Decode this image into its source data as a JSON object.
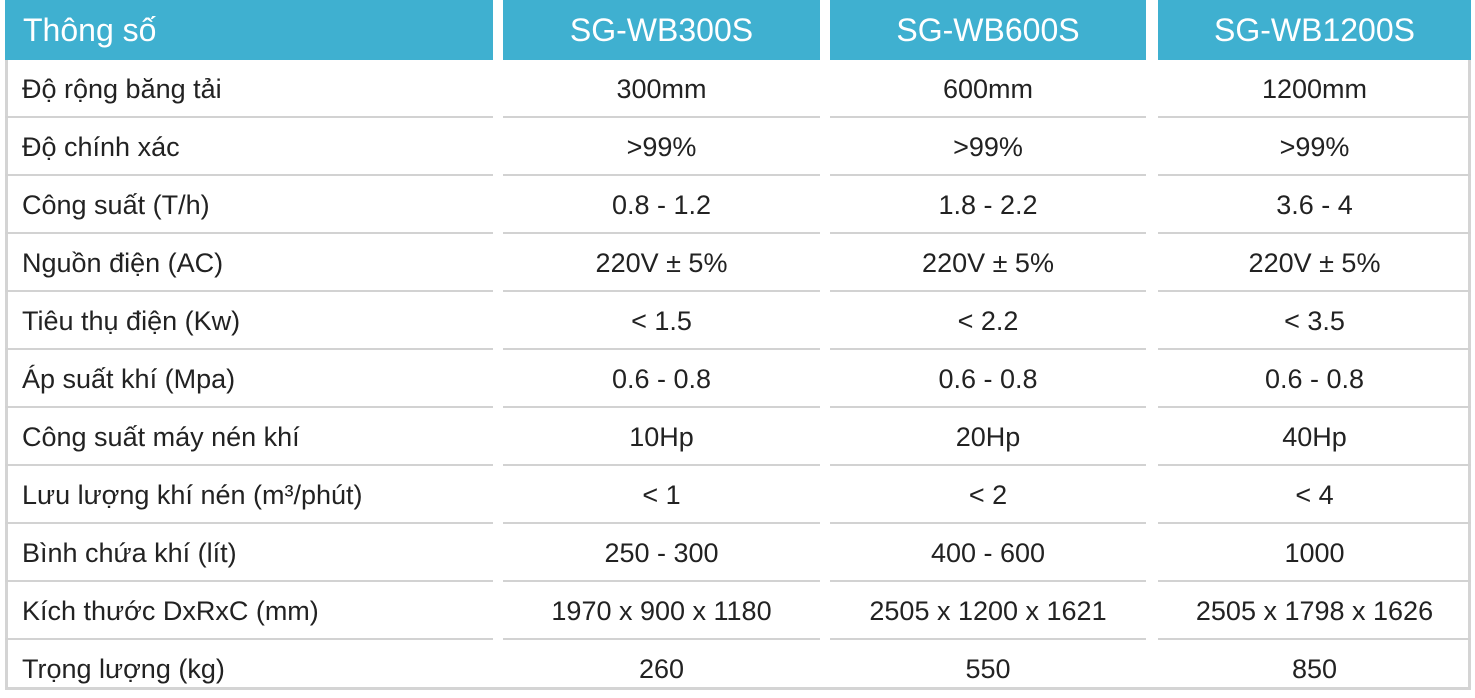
{
  "header": {
    "param_label": "Thông số",
    "models": [
      "SG-WB300S",
      "SG-WB600S",
      "SG-WB1200S"
    ]
  },
  "rows": [
    {
      "label": "Độ rộng băng tải",
      "values": [
        "300mm",
        "600mm",
        "1200mm"
      ]
    },
    {
      "label": "Độ chính xác",
      "values": [
        ">99%",
        ">99%",
        ">99%"
      ]
    },
    {
      "label": "Công suất (T/h)",
      "values": [
        "0.8 - 1.2",
        "1.8 - 2.2",
        "3.6 - 4"
      ]
    },
    {
      "label": "Nguồn điện (AC)",
      "values": [
        "220V ± 5%",
        "220V ± 5%",
        "220V ± 5%"
      ]
    },
    {
      "label": "Tiêu thụ điện (Kw)",
      "values": [
        "< 1.5",
        "< 2.2",
        "< 3.5"
      ]
    },
    {
      "label": "Áp suất khí (Mpa)",
      "values": [
        "0.6 - 0.8",
        "0.6 - 0.8",
        "0.6 - 0.8"
      ]
    },
    {
      "label": "Công suất máy nén khí",
      "values": [
        "10Hp",
        "20Hp",
        "40Hp"
      ]
    },
    {
      "label": "Lưu lượng khí nén (m³/phút)",
      "values": [
        "< 1",
        "< 2",
        "< 4"
      ]
    },
    {
      "label": "Bình chứa khí (lít)",
      "values": [
        "250 - 300",
        "400 - 600",
        "1000"
      ]
    },
    {
      "label": "Kích thước DxRxC (mm)",
      "values": [
        "1970 x 900 x 1180",
        "2505 x 1200 x 1621",
        "2505 x 1798 x 1626"
      ]
    },
    {
      "label": "Trọng lượng (kg)",
      "values": [
        "260",
        "550",
        "850"
      ]
    }
  ],
  "colors": {
    "header_bg": "#3fb0d0",
    "header_text": "#ffffff",
    "grid_line": "#d2d2d2",
    "body_text": "#222222"
  }
}
